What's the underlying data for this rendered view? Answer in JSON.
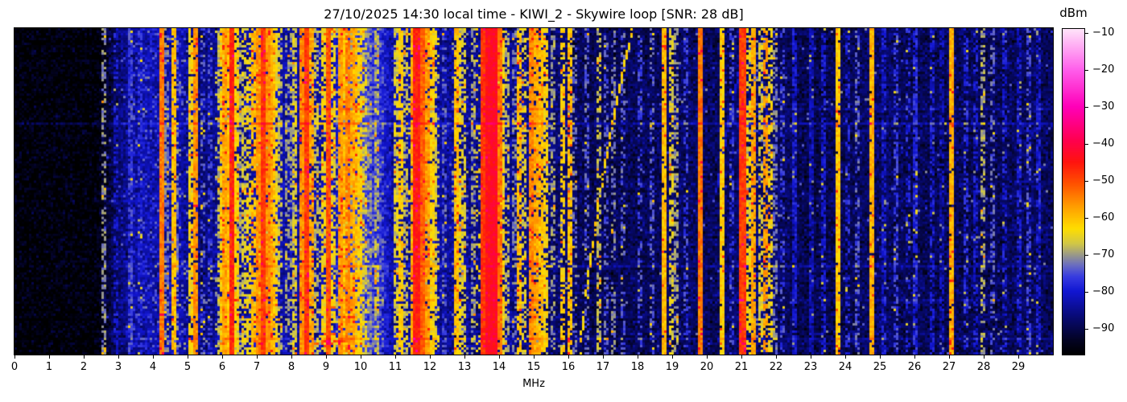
{
  "chart_data": {
    "type": "heatmap",
    "subtype": "radio-spectrogram-waterfall",
    "title": "27/10/2025 14:30 local time - KIWI_2 - Skywire loop [SNR: 28 dB]",
    "xlabel": "MHz",
    "ylabel": "",
    "x_range": [
      0,
      30
    ],
    "x_ticks": [
      0,
      1,
      2,
      3,
      4,
      5,
      6,
      7,
      8,
      9,
      10,
      11,
      12,
      13,
      14,
      15,
      16,
      17,
      18,
      19,
      20,
      21,
      22,
      23,
      24,
      25,
      26,
      27,
      28,
      29
    ],
    "y_axis_note": "time, unlabeled",
    "colorbar": {
      "label": "dBm",
      "ticks": [
        -10,
        -20,
        -30,
        -40,
        -50,
        -60,
        -70,
        -80,
        -90
      ],
      "vmin": -97,
      "vmax": -9
    },
    "colormap_stops": [
      [
        -97,
        [
          0,
          0,
          0
        ]
      ],
      [
        -93,
        [
          4,
          4,
          38
        ]
      ],
      [
        -87,
        [
          8,
          10,
          115
        ]
      ],
      [
        -80,
        [
          18,
          22,
          210
        ]
      ],
      [
        -76,
        [
          55,
          60,
          225
        ]
      ],
      [
        -73,
        [
          105,
          108,
          195
        ]
      ],
      [
        -70,
        [
          155,
          155,
          135
        ]
      ],
      [
        -67,
        [
          210,
          200,
          70
        ]
      ],
      [
        -63,
        [
          255,
          222,
          0
        ]
      ],
      [
        -57,
        [
          255,
          158,
          0
        ]
      ],
      [
        -51,
        [
          255,
          84,
          0
        ]
      ],
      [
        -45,
        [
          255,
          20,
          15
        ]
      ],
      [
        -39,
        [
          255,
          0,
          80
        ]
      ],
      [
        -30,
        [
          255,
          0,
          185
        ]
      ],
      [
        -20,
        [
          255,
          95,
          235
        ]
      ],
      [
        -9,
        [
          255,
          228,
          250
        ]
      ]
    ],
    "noise_floor_dbm_by_mhz": [
      [
        0,
        -96
      ],
      [
        2.4,
        -96
      ],
      [
        2.7,
        -92
      ],
      [
        3.0,
        -87
      ],
      [
        3.4,
        -84
      ],
      [
        3.9,
        -82
      ],
      [
        4.35,
        -84
      ],
      [
        4.75,
        -82
      ],
      [
        5.1,
        -86
      ],
      [
        5.5,
        -86
      ],
      [
        6.0,
        -84
      ],
      [
        6.5,
        -85
      ],
      [
        7.0,
        -82
      ],
      [
        7.7,
        -83
      ],
      [
        8.3,
        -84
      ],
      [
        9.0,
        -83
      ],
      [
        9.5,
        -79
      ],
      [
        10.0,
        -76
      ],
      [
        10.55,
        -78
      ],
      [
        10.9,
        -83
      ],
      [
        11.4,
        -84
      ],
      [
        12.3,
        -84
      ],
      [
        13.0,
        -85
      ],
      [
        14.3,
        -85
      ],
      [
        15.6,
        -87
      ],
      [
        16.5,
        -89
      ],
      [
        18.0,
        -89
      ],
      [
        19.5,
        -88
      ],
      [
        20.0,
        -89
      ],
      [
        21.5,
        -87
      ],
      [
        22.1,
        -88
      ],
      [
        23.0,
        -90
      ],
      [
        24.0,
        -89
      ],
      [
        25.0,
        -88
      ],
      [
        26.0,
        -89
      ],
      [
        27.0,
        -89
      ],
      [
        28.5,
        -89
      ],
      [
        29.3,
        -88
      ],
      [
        30,
        -89
      ]
    ],
    "signals_f_level_width_duty": [
      [
        2.55,
        -71,
        0.07,
        0.55
      ],
      [
        2.9,
        -80,
        0.07,
        0.5
      ],
      [
        3.33,
        -76,
        0.07,
        0.7
      ],
      [
        3.6,
        -78,
        0.07,
        0.5
      ],
      [
        4.26,
        -54,
        0.07,
        1
      ],
      [
        4.42,
        -72,
        0.07,
        0.5
      ],
      [
        4.57,
        -60,
        0.07,
        0.85
      ],
      [
        4.7,
        -72,
        0.07,
        0.5
      ],
      [
        5.06,
        -64,
        0.07,
        0.75
      ],
      [
        5.22,
        -56,
        0.07,
        0.95
      ],
      [
        5.45,
        -74,
        0.07,
        0.4
      ],
      [
        5.65,
        -76,
        0.07,
        0.4
      ],
      [
        5.9,
        -68,
        0.07,
        0.5
      ],
      [
        6.0,
        -62,
        0.07,
        0.8
      ],
      [
        6.07,
        -58,
        0.07,
        0.9
      ],
      [
        6.16,
        -60,
        0.07,
        0.85
      ],
      [
        6.27,
        -47,
        0.08,
        1
      ],
      [
        6.4,
        -62,
        0.07,
        0.8
      ],
      [
        6.52,
        -70,
        0.07,
        0.5
      ],
      [
        6.6,
        -66,
        0.07,
        0.6
      ],
      [
        6.8,
        -64,
        0.07,
        0.6
      ],
      [
        6.9,
        -60,
        0.07,
        0.7
      ],
      [
        7.06,
        -56,
        0.07,
        0.9
      ],
      [
        7.15,
        -62,
        0.07,
        0.8
      ],
      [
        7.21,
        -49,
        0.08,
        1
      ],
      [
        7.3,
        -56,
        0.07,
        0.9
      ],
      [
        7.38,
        -58,
        0.07,
        0.8
      ],
      [
        7.45,
        -60,
        0.07,
        0.8
      ],
      [
        7.55,
        -64,
        0.07,
        0.7
      ],
      [
        7.7,
        -68,
        0.07,
        0.5
      ],
      [
        7.85,
        -70,
        0.07,
        0.5
      ],
      [
        8.0,
        -70,
        0.07,
        0.5
      ],
      [
        8.1,
        -66,
        0.07,
        0.6
      ],
      [
        8.33,
        -56,
        0.07,
        0.9
      ],
      [
        8.46,
        -49,
        0.08,
        1
      ],
      [
        8.6,
        -58,
        0.07,
        0.8
      ],
      [
        8.75,
        -68,
        0.07,
        0.5
      ],
      [
        8.9,
        -64,
        0.07,
        0.7
      ],
      [
        9.05,
        -51,
        0.08,
        1
      ],
      [
        9.2,
        -64,
        0.07,
        0.7
      ],
      [
        9.4,
        -57,
        0.07,
        0.9
      ],
      [
        9.5,
        -60,
        0.07,
        0.8
      ],
      [
        9.58,
        -64,
        0.07,
        0.7
      ],
      [
        9.65,
        -55,
        0.07,
        0.9
      ],
      [
        9.75,
        -58,
        0.07,
        0.8
      ],
      [
        9.87,
        -60,
        0.07,
        0.8
      ],
      [
        10.0,
        -62,
        0.07,
        0.8
      ],
      [
        10.13,
        -66,
        0.07,
        0.6
      ],
      [
        10.25,
        -70,
        0.07,
        0.5
      ],
      [
        10.45,
        -68,
        0.07,
        0.6
      ],
      [
        11.0,
        -66,
        0.07,
        0.7
      ],
      [
        11.17,
        -62,
        0.07,
        0.8
      ],
      [
        11.32,
        -68,
        0.07,
        0.5
      ],
      [
        11.5,
        -58,
        0.07,
        0.9
      ],
      [
        11.62,
        -46,
        0.09,
        1
      ],
      [
        11.76,
        -52,
        0.07,
        1
      ],
      [
        11.9,
        -57,
        0.07,
        0.9
      ],
      [
        12.05,
        -62,
        0.07,
        0.8
      ],
      [
        12.16,
        -66,
        0.07,
        0.6
      ],
      [
        12.45,
        -74,
        0.07,
        0.4
      ],
      [
        12.75,
        -60,
        0.07,
        0.8
      ],
      [
        12.87,
        -64,
        0.07,
        0.7
      ],
      [
        13.0,
        -66,
        0.07,
        0.6
      ],
      [
        13.27,
        -70,
        0.07,
        0.5
      ],
      [
        13.57,
        -48,
        0.09,
        1
      ],
      [
        13.7,
        -44,
        0.12,
        1
      ],
      [
        13.87,
        -43,
        0.12,
        1
      ],
      [
        14.0,
        -54,
        0.07,
        0.95
      ],
      [
        14.12,
        -64,
        0.07,
        0.6
      ],
      [
        14.25,
        -68,
        0.07,
        0.5
      ],
      [
        14.45,
        -72,
        0.07,
        0.4
      ],
      [
        14.6,
        -60,
        0.07,
        0.7
      ],
      [
        14.75,
        -66,
        0.07,
        0.5
      ],
      [
        14.9,
        -55,
        0.07,
        0.9
      ],
      [
        15.04,
        -58,
        0.07,
        0.85
      ],
      [
        15.2,
        -60,
        0.07,
        0.8
      ],
      [
        15.38,
        -63,
        0.07,
        0.7
      ],
      [
        15.55,
        -70,
        0.07,
        0.5
      ],
      [
        15.82,
        -62,
        0.07,
        0.6
      ],
      [
        16.05,
        -60,
        0.07,
        0.8
      ],
      [
        16.2,
        -72,
        0.07,
        0.4
      ],
      [
        16.55,
        -74,
        0.07,
        0.4
      ],
      [
        16.9,
        -68,
        0.07,
        0.5
      ],
      [
        17.1,
        -74,
        0.07,
        0.4
      ],
      [
        17.3,
        -72,
        0.07,
        0.45
      ],
      [
        17.55,
        -74,
        0.07,
        0.4
      ],
      [
        18.1,
        -76,
        0.07,
        0.4
      ],
      [
        18.45,
        -74,
        0.07,
        0.4
      ],
      [
        18.8,
        -60,
        0.07,
        0.95
      ],
      [
        18.95,
        -66,
        0.07,
        0.55
      ],
      [
        19.1,
        -70,
        0.07,
        0.5
      ],
      [
        19.4,
        -76,
        0.07,
        0.4
      ],
      [
        19.8,
        -54,
        0.08,
        1
      ],
      [
        20.45,
        -62,
        0.07,
        0.9
      ],
      [
        20.7,
        -76,
        0.07,
        0.4
      ],
      [
        21.02,
        -49,
        0.1,
        1
      ],
      [
        21.2,
        -64,
        0.07,
        0.6
      ],
      [
        21.35,
        -58,
        0.07,
        0.9
      ],
      [
        21.55,
        -66,
        0.07,
        0.5
      ],
      [
        21.7,
        -57,
        0.07,
        0.7
      ],
      [
        21.87,
        -64,
        0.07,
        0.6
      ],
      [
        22.0,
        -72,
        0.07,
        0.45
      ],
      [
        22.2,
        -76,
        0.07,
        0.4
      ],
      [
        22.55,
        -80,
        0.07,
        0.8
      ],
      [
        23.0,
        -82,
        0.07,
        0.8
      ],
      [
        23.4,
        -80,
        0.07,
        0.7
      ],
      [
        23.8,
        -61,
        0.07,
        0.95
      ],
      [
        24.1,
        -78,
        0.07,
        0.4
      ],
      [
        24.35,
        -74,
        0.07,
        0.45
      ],
      [
        24.8,
        -59,
        0.07,
        0.95
      ],
      [
        25.1,
        -80,
        0.07,
        0.6
      ],
      [
        25.45,
        -76,
        0.07,
        0.5
      ],
      [
        25.8,
        -78,
        0.07,
        0.4
      ],
      [
        26.05,
        -78,
        0.07,
        0.8
      ],
      [
        26.5,
        -80,
        0.07,
        0.6
      ],
      [
        26.8,
        -82,
        0.07,
        0.6
      ],
      [
        27.1,
        -59,
        0.07,
        0.95
      ],
      [
        27.5,
        -78,
        0.07,
        0.5
      ],
      [
        27.8,
        -80,
        0.07,
        0.5
      ],
      [
        28.0,
        -69,
        0.07,
        0.55
      ],
      [
        28.25,
        -74,
        0.07,
        0.45
      ],
      [
        28.6,
        -80,
        0.07,
        0.5
      ],
      [
        29.0,
        -80,
        0.07,
        0.6
      ],
      [
        29.3,
        -76,
        0.07,
        0.5
      ],
      [
        29.6,
        -80,
        0.07,
        0.6
      ]
    ],
    "speckle_bands_f0_f1_prob_level": [
      [
        3.4,
        4.3,
        0.1,
        -76
      ],
      [
        4.3,
        5.0,
        0.12,
        -72
      ],
      [
        5.8,
        6.6,
        0.15,
        -68
      ],
      [
        6.8,
        7.7,
        0.22,
        -66
      ],
      [
        8.2,
        9.2,
        0.15,
        -68
      ],
      [
        9.3,
        10.15,
        0.28,
        -68
      ],
      [
        10.15,
        10.65,
        0.3,
        -73
      ],
      [
        11.4,
        12.25,
        0.22,
        -66
      ],
      [
        12.6,
        13.1,
        0.12,
        -70
      ],
      [
        13.3,
        14.15,
        0.25,
        -64
      ],
      [
        14.5,
        15.5,
        0.12,
        -68
      ],
      [
        15.7,
        16.15,
        0.08,
        -70
      ],
      [
        20.9,
        21.95,
        0.1,
        -72
      ],
      [
        2.5,
        30,
        0.012,
        -74
      ]
    ],
    "broadband_bursts_t_f0_f1_boost": [
      [
        0.245,
        2.4,
        30,
        4
      ],
      [
        0.29,
        0.0,
        30,
        6
      ],
      [
        0.73,
        2.4,
        30,
        3.5
      ],
      [
        0.835,
        2.4,
        30,
        3
      ],
      [
        0.958,
        2.4,
        30,
        4
      ],
      [
        0.962,
        8.68,
        9.42,
        15
      ],
      [
        0.97,
        8.68,
        9.42,
        15
      ]
    ],
    "ionosonde_sweep": {
      "f_of_t": {
        "a": 17.85,
        "b": -2.13,
        "c": 0.61
      },
      "t0": 0.0,
      "t1": 1.0,
      "level": -62,
      "dash_prob": 0.72,
      "note": "diagonal swept carrier rising from 16.35 MHz at bottom to 17.85 MHz at top"
    },
    "faint_sweep": {
      "f_of_t": {
        "a": 21.2,
        "b": -2.13,
        "c": 0.61
      },
      "t0": 0.08,
      "t1": 0.5,
      "level": -80,
      "dash_prob": 0.8
    },
    "grid": "off",
    "legend": "none"
  }
}
